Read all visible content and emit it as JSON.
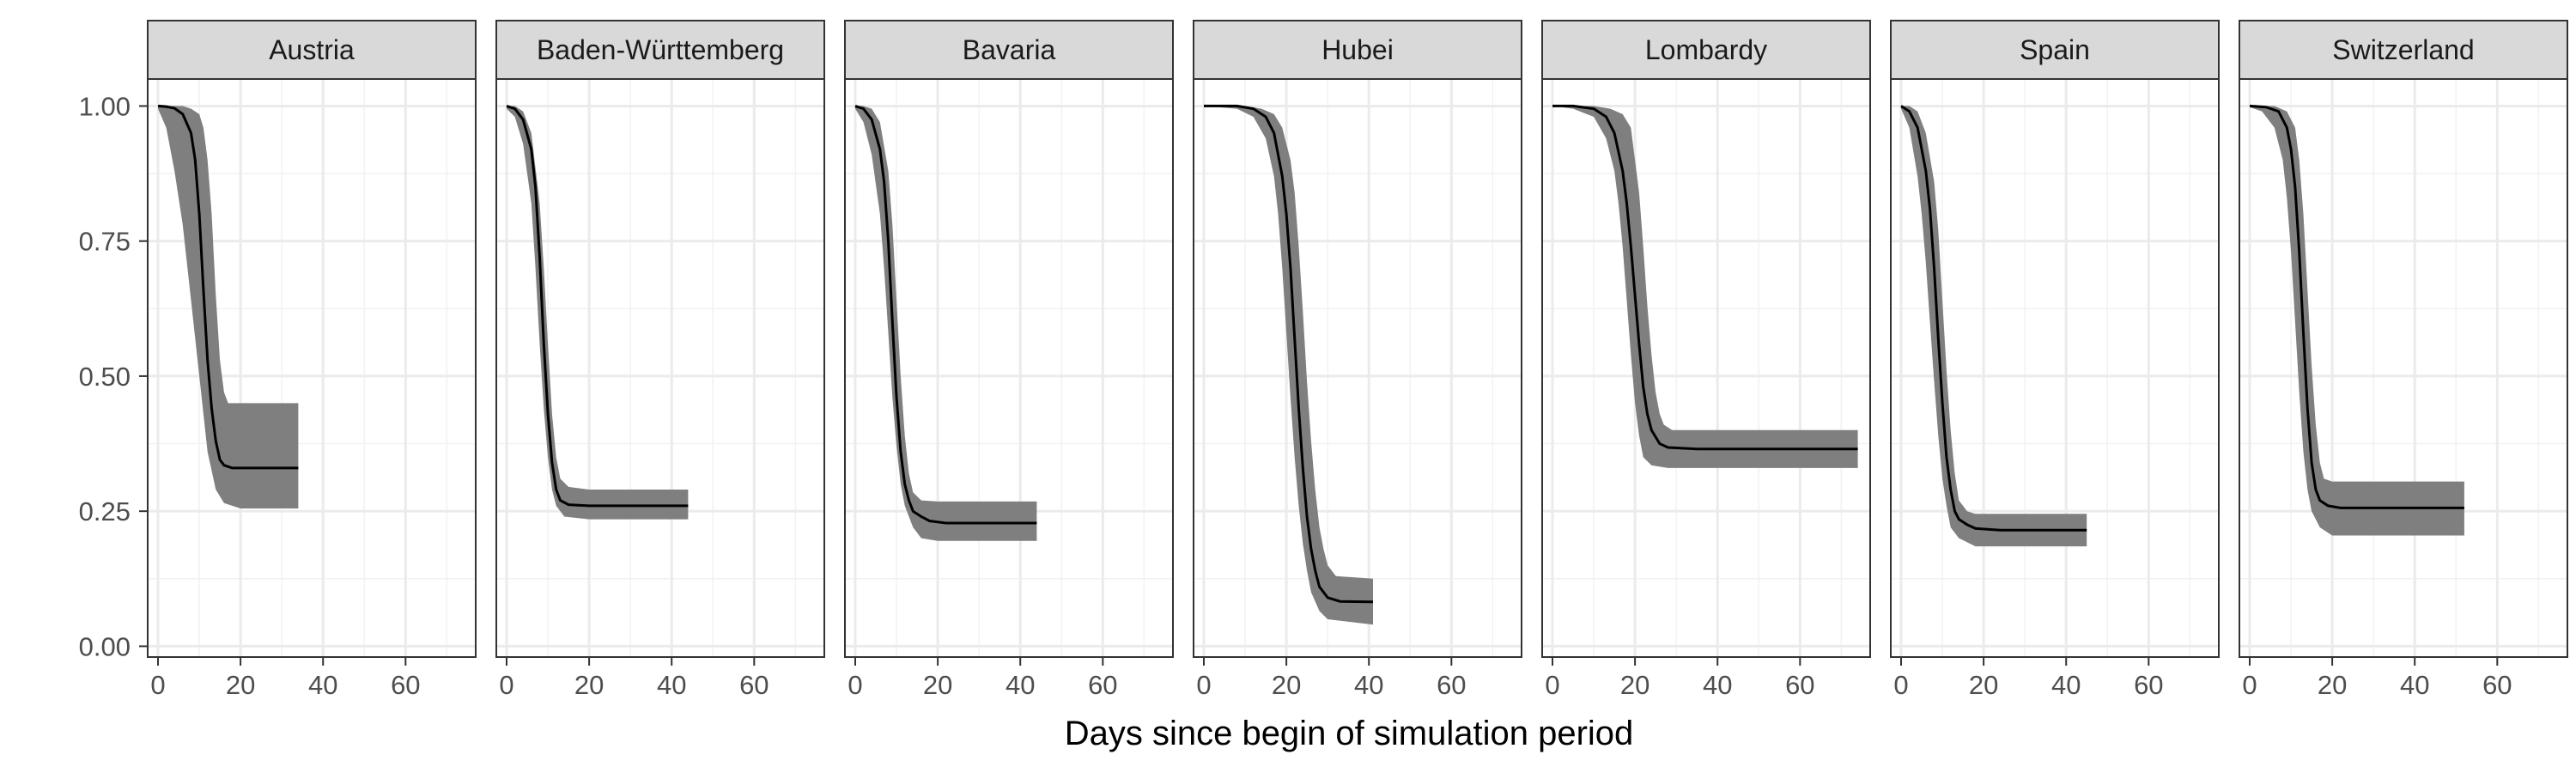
{
  "chart_data": {
    "type": "line",
    "xlabel": "Days since begin of simulation period",
    "ylabel": "",
    "xlim": [
      -2.5,
      77
    ],
    "ylim": [
      -0.02,
      1.05
    ],
    "xticks": [
      0,
      20,
      40,
      60
    ],
    "yticks": [
      0.0,
      0.25,
      0.5,
      0.75,
      1.0
    ],
    "ytick_labels": [
      "0.00",
      "0.25",
      "0.50",
      "0.75",
      "1.00"
    ],
    "grid": true,
    "band_description": "uncertainty band",
    "colors": {
      "line": "#000000",
      "band": "#7f7f7f",
      "strip": "#d9d9d9",
      "grid": "#ebebeb"
    },
    "panels": [
      {
        "name": "Austria",
        "x_end": 34,
        "points": [
          [
            0,
            1.0
          ],
          [
            2,
            0.999
          ],
          [
            4,
            0.996
          ],
          [
            6,
            0.985
          ],
          [
            8,
            0.95
          ],
          [
            9,
            0.9
          ],
          [
            10,
            0.8
          ],
          [
            11,
            0.66
          ],
          [
            12,
            0.53
          ],
          [
            13,
            0.44
          ],
          [
            14,
            0.38
          ],
          [
            15,
            0.345
          ],
          [
            16,
            0.335
          ],
          [
            18,
            0.33
          ],
          [
            22,
            0.33
          ],
          [
            34,
            0.33
          ]
        ],
        "upper": [
          [
            0,
            1.0
          ],
          [
            2,
            1.0
          ],
          [
            4,
            1.0
          ],
          [
            6,
            1.0
          ],
          [
            8,
            0.995
          ],
          [
            10,
            0.985
          ],
          [
            11,
            0.96
          ],
          [
            12,
            0.9
          ],
          [
            13,
            0.8
          ],
          [
            14,
            0.65
          ],
          [
            15,
            0.53
          ],
          [
            16,
            0.47
          ],
          [
            17,
            0.45
          ],
          [
            20,
            0.45
          ],
          [
            34,
            0.45
          ]
        ],
        "lower": [
          [
            0,
            0.995
          ],
          [
            2,
            0.96
          ],
          [
            4,
            0.88
          ],
          [
            6,
            0.78
          ],
          [
            8,
            0.64
          ],
          [
            10,
            0.5
          ],
          [
            12,
            0.36
          ],
          [
            14,
            0.29
          ],
          [
            16,
            0.265
          ],
          [
            20,
            0.255
          ],
          [
            34,
            0.255
          ]
        ]
      },
      {
        "name": "Baden-Württemberg",
        "x_end": 44,
        "points": [
          [
            0,
            1.0
          ],
          [
            2,
            0.995
          ],
          [
            4,
            0.975
          ],
          [
            6,
            0.92
          ],
          [
            7,
            0.85
          ],
          [
            8,
            0.72
          ],
          [
            9,
            0.56
          ],
          [
            10,
            0.43
          ],
          [
            11,
            0.34
          ],
          [
            12,
            0.29
          ],
          [
            13,
            0.27
          ],
          [
            15,
            0.262
          ],
          [
            20,
            0.26
          ],
          [
            44,
            0.26
          ]
        ],
        "upper": [
          [
            0,
            1.0
          ],
          [
            2,
            1.0
          ],
          [
            4,
            0.99
          ],
          [
            6,
            0.95
          ],
          [
            8,
            0.82
          ],
          [
            9,
            0.7
          ],
          [
            10,
            0.56
          ],
          [
            11,
            0.43
          ],
          [
            12,
            0.35
          ],
          [
            13,
            0.31
          ],
          [
            15,
            0.295
          ],
          [
            20,
            0.29
          ],
          [
            44,
            0.29
          ]
        ],
        "lower": [
          [
            0,
            0.995
          ],
          [
            2,
            0.98
          ],
          [
            4,
            0.93
          ],
          [
            6,
            0.82
          ],
          [
            7,
            0.7
          ],
          [
            8,
            0.56
          ],
          [
            9,
            0.44
          ],
          [
            10,
            0.35
          ],
          [
            11,
            0.29
          ],
          [
            12,
            0.26
          ],
          [
            14,
            0.24
          ],
          [
            20,
            0.235
          ],
          [
            44,
            0.235
          ]
        ]
      },
      {
        "name": "Bavaria",
        "x_end": 44,
        "points": [
          [
            0,
            1.0
          ],
          [
            2,
            0.995
          ],
          [
            4,
            0.975
          ],
          [
            6,
            0.92
          ],
          [
            7,
            0.86
          ],
          [
            8,
            0.75
          ],
          [
            9,
            0.6
          ],
          [
            10,
            0.46
          ],
          [
            11,
            0.36
          ],
          [
            12,
            0.3
          ],
          [
            13,
            0.27
          ],
          [
            14,
            0.25
          ],
          [
            16,
            0.24
          ],
          [
            18,
            0.232
          ],
          [
            22,
            0.228
          ],
          [
            44,
            0.228
          ]
        ],
        "upper": [
          [
            0,
            1.0
          ],
          [
            2,
            1.0
          ],
          [
            4,
            0.995
          ],
          [
            6,
            0.97
          ],
          [
            8,
            0.88
          ],
          [
            9,
            0.78
          ],
          [
            10,
            0.64
          ],
          [
            11,
            0.5
          ],
          [
            12,
            0.39
          ],
          [
            13,
            0.32
          ],
          [
            14,
            0.285
          ],
          [
            16,
            0.27
          ],
          [
            20,
            0.268
          ],
          [
            44,
            0.268
          ]
        ],
        "lower": [
          [
            0,
            0.995
          ],
          [
            2,
            0.97
          ],
          [
            4,
            0.91
          ],
          [
            6,
            0.8
          ],
          [
            7,
            0.7
          ],
          [
            8,
            0.58
          ],
          [
            9,
            0.46
          ],
          [
            10,
            0.37
          ],
          [
            11,
            0.3
          ],
          [
            12,
            0.26
          ],
          [
            14,
            0.22
          ],
          [
            16,
            0.2
          ],
          [
            20,
            0.195
          ],
          [
            44,
            0.195
          ]
        ]
      },
      {
        "name": "Hubei",
        "x_end": 41,
        "points": [
          [
            0,
            1.0
          ],
          [
            8,
            1.0
          ],
          [
            12,
            0.995
          ],
          [
            15,
            0.98
          ],
          [
            17,
            0.95
          ],
          [
            19,
            0.87
          ],
          [
            20,
            0.8
          ],
          [
            21,
            0.7
          ],
          [
            22,
            0.57
          ],
          [
            23,
            0.44
          ],
          [
            24,
            0.33
          ],
          [
            25,
            0.24
          ],
          [
            26,
            0.18
          ],
          [
            27,
            0.14
          ],
          [
            28,
            0.11
          ],
          [
            30,
            0.09
          ],
          [
            33,
            0.083
          ],
          [
            41,
            0.082
          ]
        ],
        "upper": [
          [
            0,
            1.0
          ],
          [
            10,
            1.0
          ],
          [
            14,
            0.995
          ],
          [
            17,
            0.985
          ],
          [
            19,
            0.96
          ],
          [
            21,
            0.9
          ],
          [
            22,
            0.84
          ],
          [
            23,
            0.74
          ],
          [
            24,
            0.62
          ],
          [
            25,
            0.49
          ],
          [
            26,
            0.38
          ],
          [
            27,
            0.29
          ],
          [
            28,
            0.22
          ],
          [
            29,
            0.18
          ],
          [
            30,
            0.15
          ],
          [
            32,
            0.13
          ],
          [
            41,
            0.125
          ]
        ],
        "lower": [
          [
            0,
            1.0
          ],
          [
            8,
            0.995
          ],
          [
            12,
            0.98
          ],
          [
            15,
            0.94
          ],
          [
            17,
            0.87
          ],
          [
            18,
            0.8
          ],
          [
            19,
            0.7
          ],
          [
            20,
            0.58
          ],
          [
            21,
            0.46
          ],
          [
            22,
            0.35
          ],
          [
            23,
            0.26
          ],
          [
            24,
            0.19
          ],
          [
            25,
            0.14
          ],
          [
            26,
            0.1
          ],
          [
            28,
            0.065
          ],
          [
            30,
            0.05
          ],
          [
            41,
            0.04
          ]
        ]
      },
      {
        "name": "Lombardy",
        "x_end": 74,
        "points": [
          [
            0,
            1.0
          ],
          [
            5,
            1.0
          ],
          [
            10,
            0.995
          ],
          [
            13,
            0.98
          ],
          [
            15,
            0.95
          ],
          [
            17,
            0.88
          ],
          [
            18,
            0.82
          ],
          [
            19,
            0.74
          ],
          [
            20,
            0.65
          ],
          [
            21,
            0.56
          ],
          [
            22,
            0.48
          ],
          [
            23,
            0.43
          ],
          [
            24,
            0.4
          ],
          [
            26,
            0.375
          ],
          [
            28,
            0.368
          ],
          [
            35,
            0.365
          ],
          [
            74,
            0.365
          ]
        ],
        "upper": [
          [
            0,
            1.0
          ],
          [
            10,
            1.0
          ],
          [
            14,
            0.995
          ],
          [
            17,
            0.985
          ],
          [
            19,
            0.96
          ],
          [
            20,
            0.9
          ],
          [
            21,
            0.84
          ],
          [
            22,
            0.74
          ],
          [
            23,
            0.63
          ],
          [
            24,
            0.54
          ],
          [
            25,
            0.47
          ],
          [
            26,
            0.43
          ],
          [
            27,
            0.41
          ],
          [
            29,
            0.4
          ],
          [
            35,
            0.4
          ],
          [
            74,
            0.4
          ]
        ],
        "lower": [
          [
            0,
            1.0
          ],
          [
            5,
            0.995
          ],
          [
            10,
            0.98
          ],
          [
            13,
            0.94
          ],
          [
            15,
            0.88
          ],
          [
            16,
            0.82
          ],
          [
            17,
            0.74
          ],
          [
            18,
            0.64
          ],
          [
            19,
            0.54
          ],
          [
            20,
            0.45
          ],
          [
            21,
            0.39
          ],
          [
            22,
            0.35
          ],
          [
            24,
            0.335
          ],
          [
            28,
            0.33
          ],
          [
            74,
            0.33
          ]
        ]
      },
      {
        "name": "Spain",
        "x_end": 45,
        "points": [
          [
            0,
            1.0
          ],
          [
            2,
            0.99
          ],
          [
            4,
            0.96
          ],
          [
            6,
            0.88
          ],
          [
            7,
            0.81
          ],
          [
            8,
            0.7
          ],
          [
            9,
            0.57
          ],
          [
            10,
            0.45
          ],
          [
            11,
            0.35
          ],
          [
            12,
            0.29
          ],
          [
            13,
            0.25
          ],
          [
            14,
            0.235
          ],
          [
            16,
            0.225
          ],
          [
            18,
            0.218
          ],
          [
            24,
            0.215
          ],
          [
            45,
            0.215
          ]
        ],
        "upper": [
          [
            0,
            1.0
          ],
          [
            2,
            1.0
          ],
          [
            4,
            0.99
          ],
          [
            6,
            0.95
          ],
          [
            8,
            0.86
          ],
          [
            9,
            0.77
          ],
          [
            10,
            0.64
          ],
          [
            11,
            0.51
          ],
          [
            12,
            0.4
          ],
          [
            13,
            0.32
          ],
          [
            14,
            0.27
          ],
          [
            16,
            0.25
          ],
          [
            18,
            0.245
          ],
          [
            45,
            0.245
          ]
        ],
        "lower": [
          [
            0,
            0.995
          ],
          [
            2,
            0.96
          ],
          [
            4,
            0.87
          ],
          [
            5,
            0.8
          ],
          [
            6,
            0.71
          ],
          [
            7,
            0.6
          ],
          [
            8,
            0.49
          ],
          [
            9,
            0.39
          ],
          [
            10,
            0.31
          ],
          [
            11,
            0.26
          ],
          [
            12,
            0.22
          ],
          [
            14,
            0.2
          ],
          [
            18,
            0.185
          ],
          [
            45,
            0.185
          ]
        ]
      },
      {
        "name": "Switzerland",
        "x_end": 52,
        "points": [
          [
            0,
            1.0
          ],
          [
            4,
            0.998
          ],
          [
            7,
            0.99
          ],
          [
            9,
            0.96
          ],
          [
            10,
            0.92
          ],
          [
            11,
            0.85
          ],
          [
            12,
            0.73
          ],
          [
            13,
            0.58
          ],
          [
            14,
            0.44
          ],
          [
            15,
            0.34
          ],
          [
            16,
            0.29
          ],
          [
            17,
            0.27
          ],
          [
            19,
            0.26
          ],
          [
            22,
            0.256
          ],
          [
            52,
            0.256
          ]
        ],
        "upper": [
          [
            0,
            1.0
          ],
          [
            6,
            1.0
          ],
          [
            9,
            0.99
          ],
          [
            11,
            0.96
          ],
          [
            12,
            0.9
          ],
          [
            13,
            0.8
          ],
          [
            14,
            0.66
          ],
          [
            15,
            0.52
          ],
          [
            16,
            0.41
          ],
          [
            17,
            0.34
          ],
          [
            18,
            0.31
          ],
          [
            20,
            0.305
          ],
          [
            52,
            0.305
          ]
        ],
        "lower": [
          [
            0,
            0.998
          ],
          [
            3,
            0.99
          ],
          [
            6,
            0.96
          ],
          [
            8,
            0.9
          ],
          [
            9,
            0.83
          ],
          [
            10,
            0.73
          ],
          [
            11,
            0.6
          ],
          [
            12,
            0.47
          ],
          [
            13,
            0.36
          ],
          [
            14,
            0.29
          ],
          [
            15,
            0.25
          ],
          [
            17,
            0.22
          ],
          [
            20,
            0.205
          ],
          [
            52,
            0.205
          ]
        ]
      }
    ]
  }
}
